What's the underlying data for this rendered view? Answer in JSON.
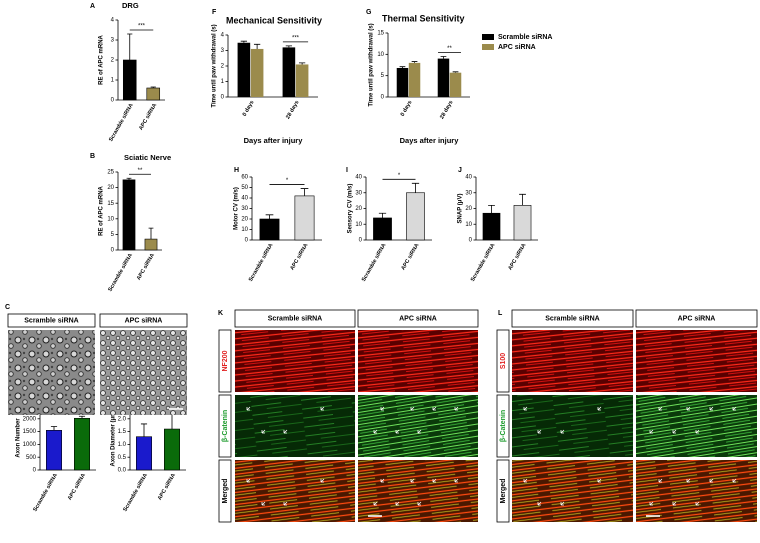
{
  "chart_data": [
    {
      "type": "bar",
      "panel": "A",
      "title": "DRG",
      "ylabel": "RE of APC mRNA",
      "categories": [
        "Scramble siRNA",
        "APC siRNA"
      ],
      "values": [
        2.0,
        0.6
      ],
      "errors": [
        1.3,
        0.05
      ],
      "colors": [
        "#000000",
        "#9b8b4c"
      ],
      "ylim": [
        0,
        4
      ],
      "yticks": [
        0,
        1,
        2,
        3,
        4
      ],
      "significance": "***"
    },
    {
      "type": "bar",
      "panel": "B",
      "title": "Sciatic Nerve",
      "ylabel": "RE of APC mRNA",
      "categories": [
        "Scramble siRNA",
        "APC siRNA"
      ],
      "values": [
        22.5,
        3.5
      ],
      "errors": [
        0.5,
        3.5
      ],
      "colors": [
        "#000000",
        "#9b8b4c"
      ],
      "ylim": [
        0,
        25
      ],
      "yticks": [
        0,
        5,
        10,
        15,
        20,
        25
      ],
      "significance": "**"
    },
    {
      "type": "grouped_bar",
      "panel": "F",
      "title": "Mechanical Sensitivity",
      "ylabel": "Time until paw withdrawal (s)",
      "xlabel": "Days after injury",
      "categories": [
        "0 days",
        "28 days"
      ],
      "series": [
        {
          "name": "Scramble siRNA",
          "color": "#000000",
          "values": [
            3.5,
            3.2
          ],
          "errors": [
            0.1,
            0.1
          ]
        },
        {
          "name": "APC siRNA",
          "color": "#9b8b4c",
          "values": [
            3.1,
            2.1
          ],
          "errors": [
            0.3,
            0.1
          ]
        }
      ],
      "ylim": [
        0,
        4
      ],
      "yticks": [
        0,
        1,
        2,
        3,
        4
      ],
      "significance": [
        null,
        "***"
      ]
    },
    {
      "type": "grouped_bar",
      "panel": "G",
      "title": "Thermal Sensitivity",
      "ylabel": "Time until paw withdrawal (s)",
      "xlabel": "Days after injury",
      "categories": [
        "0 days",
        "28 days"
      ],
      "series": [
        {
          "name": "Scramble siRNA",
          "color": "#000000",
          "values": [
            6.8,
            9.0
          ],
          "errors": [
            0.3,
            0.5
          ]
        },
        {
          "name": "APC siRNA",
          "color": "#9b8b4c",
          "values": [
            8.0,
            5.7
          ],
          "errors": [
            0.3,
            0.2
          ]
        }
      ],
      "ylim": [
        0,
        15
      ],
      "yticks": [
        0,
        5,
        10,
        15
      ],
      "significance": [
        null,
        "**"
      ],
      "legend": "right"
    },
    {
      "type": "bar",
      "panel": "H",
      "ylabel": "Motor CV (m/s)",
      "categories": [
        "Scramble siRNA",
        "APC siRNA"
      ],
      "values": [
        20,
        42
      ],
      "errors": [
        4,
        7
      ],
      "colors": [
        "#000000",
        "#d9d9d9"
      ],
      "ylim": [
        0,
        60
      ],
      "yticks": [
        0,
        10,
        20,
        30,
        40,
        50,
        60
      ],
      "significance": "*"
    },
    {
      "type": "bar",
      "panel": "I",
      "ylabel": "Sensory CV (m/s)",
      "categories": [
        "Scramble siRNA",
        "APC siRNA"
      ],
      "values": [
        14,
        30
      ],
      "errors": [
        3,
        6
      ],
      "colors": [
        "#000000",
        "#d9d9d9"
      ],
      "ylim": [
        0,
        40
      ],
      "yticks": [
        0,
        10,
        20,
        30,
        40
      ],
      "significance": "*"
    },
    {
      "type": "bar",
      "panel": "J",
      "ylabel": "SNAP (μV)",
      "categories": [
        "Scramble siRNA",
        "APC siRNA"
      ],
      "values": [
        17,
        22
      ],
      "errors": [
        5,
        7
      ],
      "colors": [
        "#000000",
        "#d9d9d9"
      ],
      "ylim": [
        0,
        40
      ],
      "yticks": [
        0,
        10,
        20,
        30,
        40
      ]
    },
    {
      "type": "bar",
      "panel": "D",
      "ylabel": "Axon Number",
      "categories": [
        "Scramble siRNA",
        "APC siRNA"
      ],
      "values": [
        1550,
        2020
      ],
      "errors": [
        150,
        80
      ],
      "colors": [
        "#1a1acc",
        "#0a6b0a"
      ],
      "ylim": [
        0,
        2500
      ],
      "yticks": [
        0,
        500,
        1000,
        1500,
        2000,
        2500
      ],
      "significance": "*"
    },
    {
      "type": "bar",
      "panel": "E",
      "ylabel": "Axon Diameter (μm)",
      "categories": [
        "Scramble siRNA",
        "APC siRNA"
      ],
      "values": [
        1.3,
        1.6
      ],
      "errors": [
        0.5,
        0.75
      ],
      "colors": [
        "#1a1acc",
        "#0a6b0a"
      ],
      "ylim": [
        0,
        2.5
      ],
      "yticks": [
        {
          "value": 0,
          "label": "0.0"
        },
        {
          "value": 0.5,
          "label": "0.5"
        },
        {
          "value": 1,
          "label": "1.0"
        },
        {
          "value": 1.5,
          "label": "1.5"
        },
        {
          "value": 2,
          "label": "2.0"
        },
        {
          "value": 2.5,
          "label": "2.5"
        }
      ]
    }
  ],
  "image_panels": [
    {
      "label": "C",
      "columns": [
        "Scramble siRNA",
        "APC siRNA"
      ]
    },
    {
      "label": "K",
      "columns": [
        "Scramble siRNA",
        "APC siRNA"
      ],
      "rows": [
        "NF200",
        "β-Catenin",
        "Merged"
      ],
      "row_colors": [
        "#e02020",
        "#1a9a2a",
        "#000000"
      ]
    },
    {
      "label": "L",
      "columns": [
        "Scramble siRNA",
        "APC siRNA"
      ],
      "rows": [
        "S100",
        "β-Catenin",
        "Merged"
      ],
      "row_colors": [
        "#e02020",
        "#1a9a2a",
        "#000000"
      ]
    }
  ]
}
